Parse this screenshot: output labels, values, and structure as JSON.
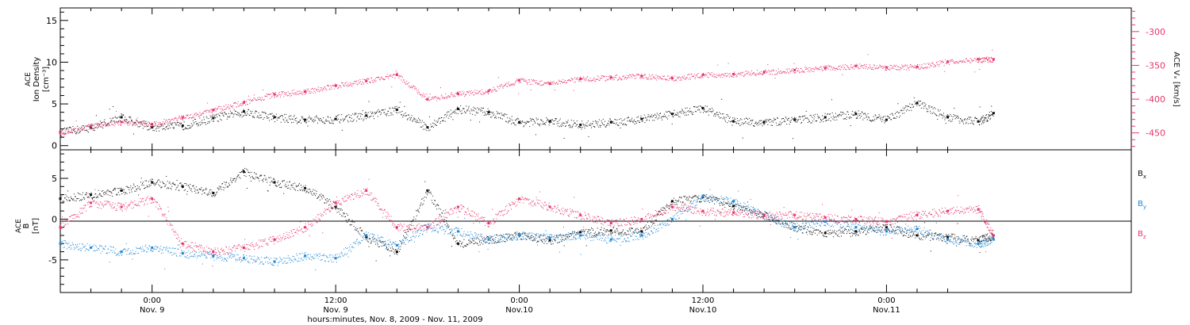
{
  "chart_data": [
    {
      "type": "scatter",
      "panel": "top",
      "x_range_hours": [
        -6,
        64
      ],
      "left_axis": {
        "label_lines": [
          "ACE",
          "Ion Density",
          "[cm⁻³]"
        ],
        "ylim": [
          -0.5,
          16.5
        ],
        "ticks": [
          "0",
          "5",
          "10",
          "15"
        ],
        "tick_values": [
          0,
          5,
          10,
          15
        ]
      },
      "right_axis": {
        "label": "ACE Vₓ [km/s]",
        "ylim": [
          -475,
          -265
        ],
        "ticks": [
          "-300",
          "-350",
          "-400",
          "-450"
        ],
        "tick_values": [
          -300,
          -350,
          -400,
          -450
        ],
        "color": "#e8356a"
      },
      "series": [
        {
          "axis": "left",
          "color": "#111111",
          "x": [
            -6,
            -4,
            -2,
            0,
            2,
            4,
            6,
            8,
            10,
            12,
            14,
            16,
            18,
            20,
            22,
            24,
            26,
            28,
            30,
            32,
            34,
            36,
            38,
            40,
            42,
            44,
            46,
            48,
            50,
            52,
            54,
            55
          ],
          "y": [
            1.6,
            2.2,
            3.4,
            2.2,
            2.4,
            3.3,
            4.1,
            3.4,
            3.1,
            3.2,
            3.6,
            4.3,
            2.2,
            4.4,
            4.0,
            2.8,
            2.9,
            2.5,
            2.8,
            3.2,
            3.8,
            4.5,
            2.9,
            2.8,
            3.1,
            3.4,
            3.8,
            3.1,
            5.1,
            3.4,
            2.9,
            3.9
          ]
        },
        {
          "axis": "right",
          "color": "#e8356a",
          "x": [
            -6,
            -4,
            -2,
            0,
            2,
            4,
            6,
            8,
            10,
            12,
            14,
            16,
            18,
            20,
            22,
            24,
            26,
            28,
            30,
            32,
            34,
            36,
            38,
            40,
            42,
            44,
            46,
            48,
            50,
            52,
            54,
            55
          ],
          "y": [
            -450,
            -440,
            -434,
            -437,
            -427,
            -416,
            -405,
            -393,
            -389,
            -380,
            -373,
            -364,
            -400,
            -392,
            -388,
            -372,
            -377,
            -370,
            -368,
            -366,
            -369,
            -364,
            -363,
            -360,
            -357,
            -354,
            -351,
            -353,
            -352,
            -345,
            -341,
            -341
          ]
        }
      ]
    },
    {
      "type": "scatter",
      "panel": "bottom",
      "x_range_hours": [
        -6,
        64
      ],
      "left_axis": {
        "label_lines": [
          "ACE",
          "B",
          "[nT]"
        ],
        "ylim": [
          -9,
          8.5
        ],
        "ticks": [
          "5",
          "0",
          "-5"
        ],
        "tick_values": [
          5,
          0,
          -5
        ]
      },
      "zero_line": true,
      "series": [
        {
          "name": "Bx",
          "color": "#111111",
          "x": [
            -6,
            -4,
            -2,
            0,
            2,
            4,
            6,
            8,
            10,
            12,
            14,
            16,
            18,
            20,
            22,
            24,
            26,
            28,
            30,
            32,
            34,
            36,
            38,
            40,
            42,
            44,
            46,
            48,
            50,
            52,
            54,
            55
          ],
          "y": [
            2.5,
            3.0,
            3.5,
            4.5,
            4.0,
            3.2,
            5.8,
            4.5,
            3.8,
            1.5,
            -2.2,
            -4.0,
            3.5,
            -3.0,
            -2.5,
            -2.0,
            -2.6,
            -1.6,
            -1.4,
            -1.5,
            2.2,
            2.7,
            1.6,
            0.5,
            -1.0,
            -1.7,
            -1.5,
            -1.0,
            -2.0,
            -2.2,
            -2.6,
            -2.0
          ]
        },
        {
          "name": "By",
          "color": "#1f88d6",
          "x": [
            -6,
            -4,
            -2,
            0,
            2,
            4,
            6,
            8,
            10,
            12,
            14,
            16,
            18,
            20,
            22,
            24,
            26,
            28,
            30,
            32,
            34,
            36,
            38,
            40,
            42,
            44,
            46,
            48,
            50,
            52,
            54,
            55
          ],
          "y": [
            -3.0,
            -3.5,
            -4.0,
            -3.5,
            -4.2,
            -4.5,
            -4.8,
            -5.2,
            -4.5,
            -4.8,
            -2.0,
            -3.2,
            -1.0,
            -1.5,
            -2.5,
            -2.0,
            -2.3,
            -2.0,
            -2.5,
            -2.0,
            0.0,
            2.8,
            2.2,
            0.5,
            -1.0,
            -0.3,
            -1.0,
            -1.5,
            -1.2,
            -2.5,
            -3.0,
            -2.5
          ]
        },
        {
          "name": "Bz",
          "color": "#e8356a",
          "x": [
            -6,
            -4,
            -2,
            0,
            2,
            4,
            6,
            8,
            10,
            12,
            14,
            16,
            18,
            20,
            22,
            24,
            26,
            28,
            30,
            32,
            34,
            36,
            38,
            40,
            42,
            44,
            46,
            48,
            50,
            52,
            54,
            55
          ],
          "y": [
            -1.0,
            2.0,
            1.5,
            2.5,
            -3.0,
            -4.0,
            -3.5,
            -2.5,
            -1.0,
            2.0,
            3.5,
            -1.0,
            -1.0,
            1.5,
            -0.5,
            2.5,
            1.5,
            0.5,
            -0.5,
            0.0,
            1.5,
            1.0,
            0.8,
            0.5,
            0.5,
            0.2,
            0.0,
            -0.3,
            0.5,
            1.0,
            1.2,
            -2.0
          ]
        }
      ]
    }
  ],
  "labels": {
    "bx": "B",
    "bx_sub": "x",
    "by": "B",
    "by_sub": "y",
    "bz": "B",
    "bz_sub": "z"
  },
  "x_axis": {
    "major_ticks": [
      {
        "hour": 0,
        "time": "0:00",
        "date": "Nov. 9"
      },
      {
        "hour": 12,
        "time": "12:00",
        "date": "Nov. 9"
      },
      {
        "hour": 24,
        "time": "0:00",
        "date": "Nov.10"
      },
      {
        "hour": 36,
        "time": "12:00",
        "date": "Nov.10"
      },
      {
        "hour": 48,
        "time": "0:00",
        "date": "Nov.11"
      }
    ],
    "minor_tick_hours": [
      -4,
      -2,
      2,
      4,
      6,
      8,
      10,
      14,
      16,
      18,
      20,
      22,
      26,
      28,
      30,
      32,
      34,
      38,
      40,
      42,
      44,
      46,
      50,
      52
    ],
    "title": "hours:minutes, Nov. 8, 2009 - Nov. 11, 2009"
  }
}
